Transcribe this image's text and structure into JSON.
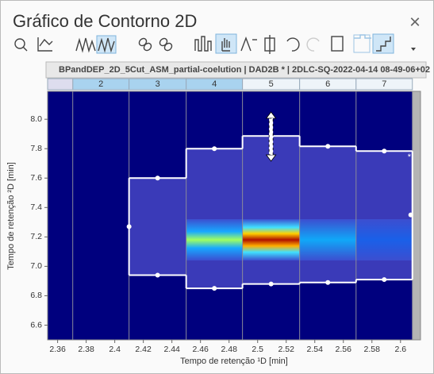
{
  "window": {
    "title": "Gráfico de Contorno 2D",
    "close": "×"
  },
  "header": {
    "file": "BPandDEP_2D_5Cut_ASM_partial-coelution | DAD2B * | 2DLC-SQ-2022-04-14 08-49-06+02"
  },
  "chart_data": {
    "type": "contour",
    "xlabel": "Tempo de retenção ¹D [min]",
    "ylabel": "Tempo de retenção ²D [min]",
    "xlim": [
      2.353,
      2.614
    ],
    "ylim": [
      6.5,
      8.19
    ],
    "xticks": [
      2.36,
      2.38,
      2.4,
      2.42,
      2.44,
      2.46,
      2.48,
      2.5,
      2.52,
      2.54,
      2.56,
      2.58,
      2.6
    ],
    "yticks": [
      {
        "value": 6.6,
        "label": "6.6"
      },
      {
        "value": 6.8,
        "label": "6.8"
      },
      {
        "value": 7.0,
        "label": "7.0"
      },
      {
        "value": 7.2,
        "label": "7.2"
      },
      {
        "value": 7.4,
        "label": "7.4"
      },
      {
        "value": 7.6,
        "label": "7.6"
      },
      {
        "value": 7.8,
        "label": "7.8"
      },
      {
        "value": 8.0,
        "label": "8.0"
      }
    ],
    "fractions": [
      "2",
      "3",
      "4",
      "5",
      "6",
      "7"
    ],
    "fraction_edges": [
      2.3706,
      2.41,
      2.45,
      2.4894,
      2.5294,
      2.5689,
      2.6083
    ],
    "selected_fractions": 3,
    "boundary": {
      "upper": [
        7.6,
        7.8,
        7.886,
        7.816,
        7.784
      ],
      "lower": [
        6.94,
        6.85,
        6.88,
        6.89,
        6.91
      ],
      "left": 7.27,
      "right": 7.35
    },
    "annotation": "*"
  }
}
